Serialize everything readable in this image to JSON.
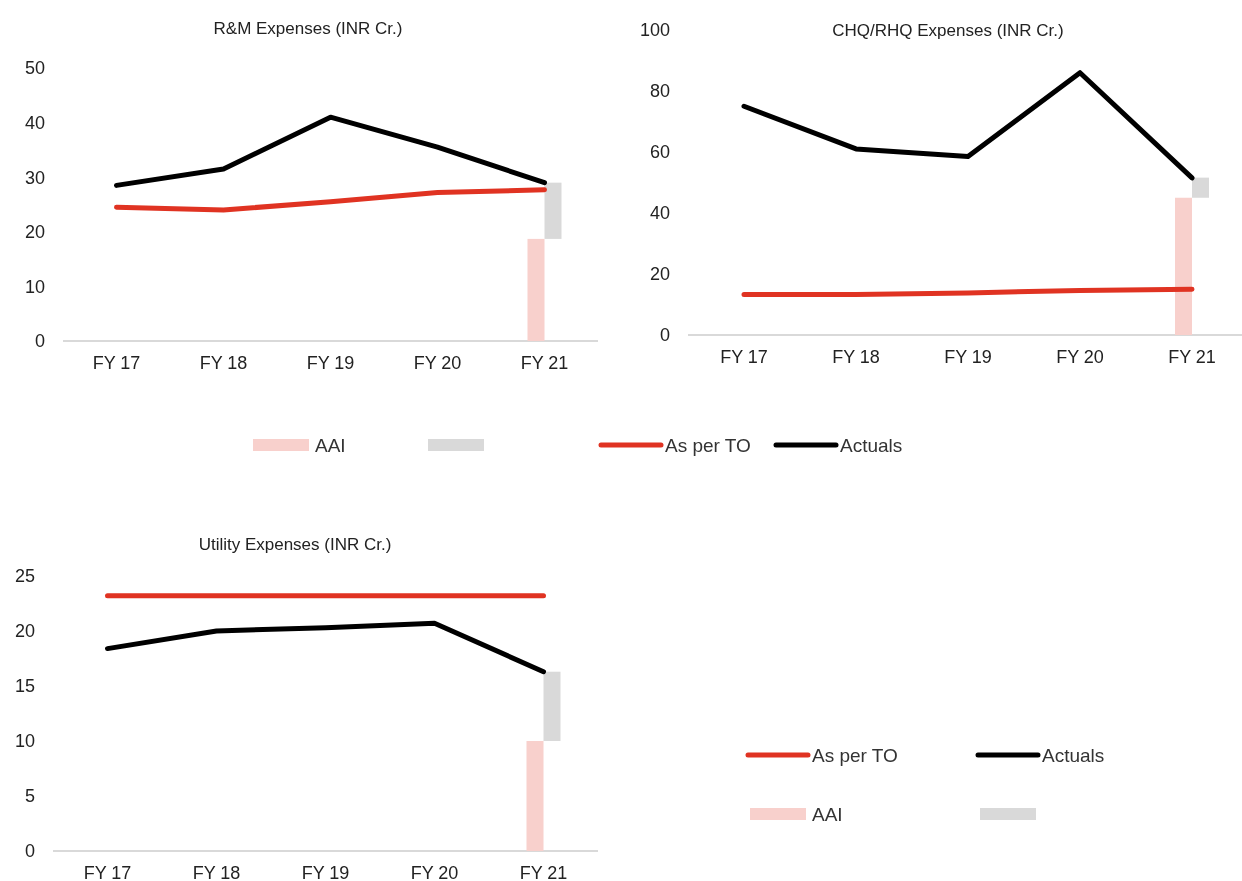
{
  "chart_data": [
    {
      "type": "line",
      "title": "R&M  Expenses  (INR Cr.)",
      "categories": [
        "FY 17",
        "FY 18",
        "FY 19",
        "FY 20",
        "FY 21"
      ],
      "ylim": [
        0,
        50
      ],
      "yticks": [
        0,
        10,
        20,
        30,
        40,
        50
      ],
      "legend": "bottom",
      "series": [
        {
          "name": "AAI",
          "type": "bar",
          "color": "#f8d0cc",
          "values": [
            null,
            null,
            null,
            null,
            18.7
          ]
        },
        {
          "type": "bar",
          "color": "#d9d9d9",
          "values": [
            null,
            null,
            null,
            null,
            10.3
          ],
          "base": [
            null,
            null,
            null,
            null,
            18.7
          ]
        },
        {
          "name": "As per TO",
          "color": "#e03322",
          "values": [
            24.5,
            24,
            25.5,
            27.2,
            27.7
          ]
        },
        {
          "name": "Actuals",
          "color": "#000000",
          "values": [
            28.5,
            31.5,
            41,
            35.5,
            29
          ]
        }
      ]
    },
    {
      "type": "line",
      "title": "CHQ/RHQ  Expenses  (INR Cr.)",
      "categories": [
        "FY 17",
        "FY 18",
        "FY 19",
        "FY 20",
        "FY 21"
      ],
      "ylim": [
        0,
        100
      ],
      "yticks": [
        0,
        20,
        40,
        60,
        80,
        100
      ],
      "series": [
        {
          "type": "bar",
          "color": "#f8d0cc",
          "values": [
            null,
            null,
            null,
            null,
            45
          ]
        },
        {
          "type": "bar",
          "color": "#d9d9d9",
          "values": [
            null,
            null,
            null,
            null,
            6.6
          ],
          "base": [
            null,
            null,
            null,
            null,
            45
          ]
        },
        {
          "color": "#e03322",
          "values": [
            13.3,
            13.3,
            13.8,
            14.6,
            15
          ]
        },
        {
          "color": "#000000",
          "values": [
            75,
            61,
            58.5,
            86,
            51.5
          ]
        }
      ]
    },
    {
      "type": "line",
      "title": "Utility  Expenses  (INR Cr.)",
      "categories": [
        "FY 17",
        "FY 18",
        "FY 19",
        "FY 20",
        "FY 21"
      ],
      "ylim": [
        0,
        25
      ],
      "yticks": [
        0,
        5,
        10,
        15,
        20,
        25
      ],
      "legend": "right",
      "series": [
        {
          "name": "As per TO",
          "color": "#e03322",
          "values": [
            23.2,
            23.2,
            23.2,
            23.2,
            23.2
          ]
        },
        {
          "name": "Actuals",
          "color": "#000000",
          "values": [
            18.4,
            20,
            20.3,
            20.7,
            16.3
          ]
        },
        {
          "name": "AAI",
          "type": "bar",
          "color": "#f8d0cc",
          "values": [
            null,
            null,
            null,
            null,
            10
          ]
        },
        {
          "type": "bar",
          "color": "#d9d9d9",
          "values": [
            null,
            null,
            null,
            null,
            6.3
          ],
          "base": [
            null,
            null,
            null,
            null,
            10
          ]
        }
      ]
    }
  ]
}
